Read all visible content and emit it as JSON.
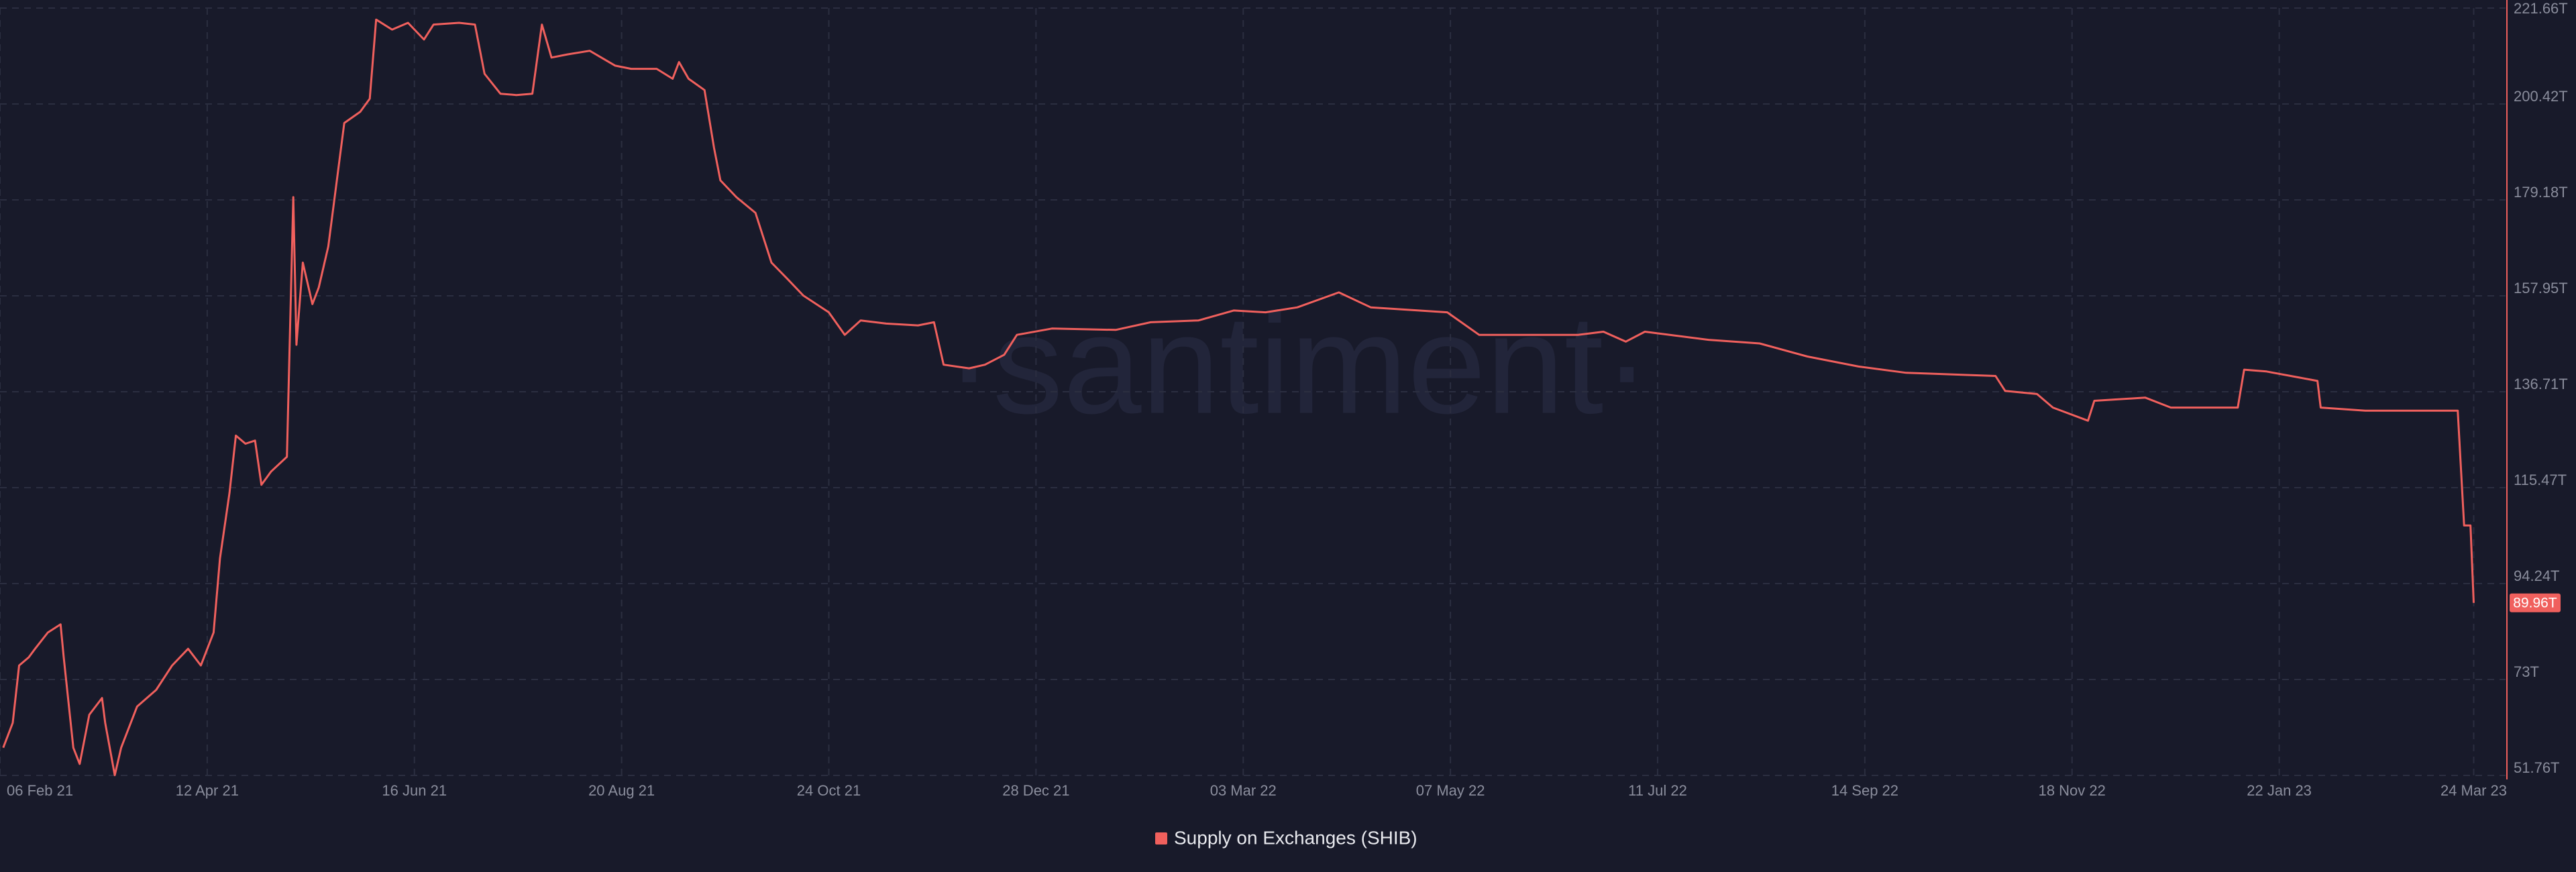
{
  "chart_data": {
    "type": "line",
    "watermark": "·santiment·",
    "x": [
      "2021-02-07",
      "2021-02-10",
      "2021-02-12",
      "2021-02-15",
      "2021-02-17",
      "2021-02-21",
      "2021-02-25",
      "2021-02-26",
      "2021-03-01",
      "2021-03-03",
      "2021-03-06",
      "2021-03-10",
      "2021-03-11",
      "2021-03-14",
      "2021-03-16",
      "2021-03-21",
      "2021-03-27",
      "2021-04-01",
      "2021-04-06",
      "2021-04-10",
      "2021-04-14",
      "2021-04-16",
      "2021-04-19",
      "2021-04-21",
      "2021-04-24",
      "2021-04-27",
      "2021-04-29",
      "2021-05-02",
      "2021-05-07",
      "2021-05-09",
      "2021-05-10",
      "2021-05-12",
      "2021-05-15",
      "2021-05-17",
      "2021-05-20",
      "2021-05-23",
      "2021-05-25",
      "2021-05-30",
      "2021-06-02",
      "2021-06-04",
      "2021-06-09",
      "2021-06-14",
      "2021-06-19",
      "2021-06-22",
      "2021-06-30",
      "2021-07-05",
      "2021-07-08",
      "2021-07-13",
      "2021-07-18",
      "2021-07-23",
      "2021-07-26",
      "2021-07-29",
      "2021-08-03",
      "2021-08-10",
      "2021-08-18",
      "2021-08-23",
      "2021-08-31",
      "2021-09-05",
      "2021-09-07",
      "2021-09-10",
      "2021-09-15",
      "2021-09-18",
      "2021-09-20",
      "2021-09-25",
      "2021-10-01",
      "2021-10-06",
      "2021-10-11",
      "2021-10-16",
      "2021-10-24",
      "2021-10-29",
      "2021-11-03",
      "2021-11-11",
      "2021-11-21",
      "2021-11-26",
      "2021-11-29",
      "2021-12-07",
      "2021-12-12",
      "2021-12-18",
      "2021-12-22",
      "2022-01-02",
      "2022-01-22",
      "2022-02-02",
      "2022-02-17",
      "2022-02-28",
      "2022-03-10",
      "2022-03-20",
      "2022-04-02",
      "2022-04-12",
      "2022-05-06",
      "2022-05-16",
      "2022-05-31",
      "2022-06-16",
      "2022-06-24",
      "2022-07-01",
      "2022-07-07",
      "2022-07-27",
      "2022-08-12",
      "2022-08-27",
      "2022-09-12",
      "2022-09-27",
      "2022-10-25",
      "2022-10-28",
      "2022-11-07",
      "2022-11-12",
      "2022-11-23",
      "2022-11-25",
      "2022-12-11",
      "2022-12-19",
      "2023-01-09",
      "2023-01-11",
      "2023-01-18",
      "2023-02-03",
      "2023-02-04",
      "2023-02-18",
      "2023-03-19",
      "2023-03-21",
      "2023-03-23",
      "2023-03-24"
    ],
    "series": [
      {
        "name": "Supply on Exchanges (SHIB)",
        "color": "#f0605d",
        "values": [
          57.9,
          63.4,
          76.1,
          77.9,
          79.8,
          83.4,
          85.2,
          77.9,
          57.9,
          54.3,
          65.2,
          68.9,
          63.4,
          51.8,
          57.9,
          67.0,
          70.7,
          76.1,
          79.8,
          76.1,
          83.4,
          99.8,
          114.3,
          127.0,
          125.2,
          125.9,
          116.1,
          119.0,
          122.3,
          179.8,
          147.1,
          165.3,
          156.1,
          159.8,
          168.9,
          185.3,
          196.2,
          198.7,
          201.6,
          219.1,
          216.9,
          218.4,
          214.7,
          218.0,
          218.4,
          218.0,
          207.1,
          202.7,
          202.4,
          202.7,
          218.0,
          210.7,
          211.4,
          212.2,
          208.9,
          208.2,
          208.2,
          206.0,
          209.7,
          206.0,
          203.5,
          190.7,
          183.5,
          179.8,
          176.3,
          165.3,
          161.7,
          158.0,
          154.3,
          149.3,
          152.5,
          151.8,
          151.4,
          152.1,
          142.7,
          141.9,
          142.7,
          144.9,
          149.3,
          150.7,
          150.4,
          152.1,
          152.5,
          154.7,
          154.3,
          155.4,
          158.7,
          155.4,
          154.3,
          149.3,
          149.3,
          149.3,
          150.0,
          147.8,
          150.0,
          148.2,
          147.4,
          144.5,
          142.3,
          140.9,
          140.2,
          136.9,
          136.2,
          133.2,
          130.3,
          134.7,
          135.4,
          133.2,
          133.2,
          141.6,
          141.2,
          139.1,
          133.2,
          132.5,
          132.5,
          107.1,
          107.1,
          89.96
        ]
      }
    ],
    "last_value_label": {
      "value": 89.96,
      "label": "89.96T"
    },
    "xlim": [
      "2021-02-06",
      "2023-04-03"
    ],
    "xticks": [
      {
        "value": "2021-02-06",
        "label": "06 Feb 21"
      },
      {
        "value": "2021-04-12",
        "label": "12 Apr 21"
      },
      {
        "value": "2021-06-16",
        "label": "16 Jun 21"
      },
      {
        "value": "2021-08-20",
        "label": "20 Aug 21"
      },
      {
        "value": "2021-10-24",
        "label": "24 Oct 21"
      },
      {
        "value": "2021-12-28",
        "label": "28 Dec 21"
      },
      {
        "value": "2022-03-03",
        "label": "03 Mar 22"
      },
      {
        "value": "2022-05-07",
        "label": "07 May 22"
      },
      {
        "value": "2022-07-11",
        "label": "11 Jul 22"
      },
      {
        "value": "2022-09-14",
        "label": "14 Sep 22"
      },
      {
        "value": "2022-11-18",
        "label": "18 Nov 22"
      },
      {
        "value": "2023-01-22",
        "label": "22 Jan 23"
      },
      {
        "value": "2023-03-24",
        "label": "24 Mar 23"
      }
    ],
    "ylim": [
      51.76,
      221.66
    ],
    "yticks": [
      {
        "value": 51.76,
        "label": "51.76T"
      },
      {
        "value": 73,
        "label": "73T"
      },
      {
        "value": 94.24,
        "label": "94.24T"
      },
      {
        "value": 115.47,
        "label": "115.47T"
      },
      {
        "value": 136.71,
        "label": "136.71T"
      },
      {
        "value": 157.95,
        "label": "157.95T"
      },
      {
        "value": 179.18,
        "label": "179.18T"
      },
      {
        "value": 200.42,
        "label": "200.42T"
      },
      {
        "value": 221.66,
        "label": "221.66T"
      }
    ],
    "y_axis_side": "right",
    "grid": true,
    "legend": "bottom"
  }
}
